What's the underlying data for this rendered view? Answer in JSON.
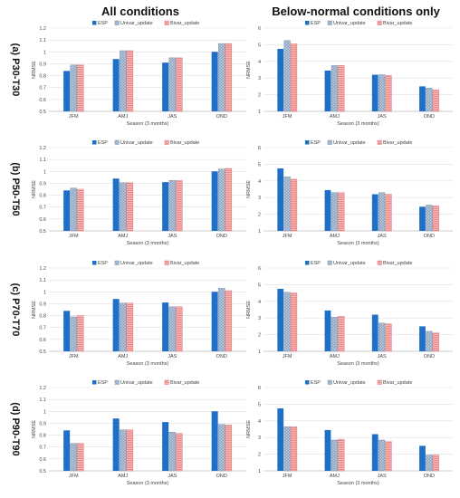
{
  "columns": [
    "All conditions",
    "Below-normal conditions only"
  ],
  "rows": [
    "(a) P30-T30",
    "(b) P50-T50",
    "(c) P70-T70",
    "(d) P90-T90"
  ],
  "colors": {
    "ESP": "#1f6fc6",
    "Univar_update": "#a9bdd6",
    "Bivar_update": "#ef7f7f"
  },
  "chart_data": [
    {
      "type": "bar",
      "row": 0,
      "col": 0,
      "categories": [
        "JFM",
        "AMJ",
        "JAS",
        "OND"
      ],
      "series": [
        {
          "name": "ESP",
          "values": [
            0.84,
            0.94,
            0.91,
            1.0
          ]
        },
        {
          "name": "Univar_update",
          "values": [
            0.89,
            1.01,
            0.95,
            1.07
          ]
        },
        {
          "name": "Bivar_update",
          "values": [
            0.89,
            1.01,
            0.95,
            1.07
          ]
        }
      ],
      "xlabel": "Season (3 months)",
      "ylabel": "NRMSE",
      "ylim": [
        0.5,
        1.2
      ],
      "yticks": [
        0.5,
        0.6,
        0.7,
        0.8,
        0.9,
        1.0,
        1.1,
        1.2
      ],
      "yticklabels": [
        "0.5",
        "0.6",
        "0.7",
        "0.8",
        "0.9",
        "1",
        "1.1",
        "1.2"
      ]
    },
    {
      "type": "bar",
      "row": 0,
      "col": 1,
      "categories": [
        "JFM",
        "AMJ",
        "JAS",
        "OND"
      ],
      "series": [
        {
          "name": "ESP",
          "values": [
            4.75,
            3.45,
            3.2,
            2.5
          ]
        },
        {
          "name": "Univar_update",
          "values": [
            5.25,
            3.75,
            3.2,
            2.4
          ]
        },
        {
          "name": "Bivar_update",
          "values": [
            5.05,
            3.75,
            3.15,
            2.3
          ]
        }
      ],
      "xlabel": "Season (3 months)",
      "ylabel": "NRMSE",
      "ylim": [
        1,
        6
      ],
      "yticks": [
        1,
        2,
        3,
        4,
        5,
        6
      ],
      "yticklabels": [
        "1",
        "2",
        "3",
        "4",
        "5",
        "6"
      ]
    },
    {
      "type": "bar",
      "row": 1,
      "col": 0,
      "categories": [
        "JFM",
        "AMJ",
        "JAS",
        "OND"
      ],
      "series": [
        {
          "name": "ESP",
          "values": [
            0.84,
            0.94,
            0.91,
            1.0
          ]
        },
        {
          "name": "Univar_update",
          "values": [
            0.86,
            0.905,
            0.925,
            1.02
          ]
        },
        {
          "name": "Bivar_update",
          "values": [
            0.85,
            0.905,
            0.925,
            1.025
          ]
        }
      ],
      "xlabel": "Season (3 months)",
      "ylabel": "NRMSE",
      "ylim": [
        0.5,
        1.2
      ],
      "yticks": [
        0.5,
        0.6,
        0.7,
        0.8,
        0.9,
        1.0,
        1.1,
        1.2
      ],
      "yticklabels": [
        "0.5",
        "0.6",
        "0.7",
        "0.8",
        "0.9",
        "1",
        "1.1",
        "1.2"
      ]
    },
    {
      "type": "bar",
      "row": 1,
      "col": 1,
      "categories": [
        "JFM",
        "AMJ",
        "JAS",
        "OND"
      ],
      "series": [
        {
          "name": "ESP",
          "values": [
            4.75,
            3.45,
            3.2,
            2.45
          ]
        },
        {
          "name": "Univar_update",
          "values": [
            4.25,
            3.3,
            3.3,
            2.55
          ]
        },
        {
          "name": "Bivar_update",
          "values": [
            4.1,
            3.3,
            3.2,
            2.5
          ]
        }
      ],
      "xlabel": "Season (3 months)",
      "ylabel": "NRMSE",
      "ylim": [
        1,
        6
      ],
      "yticks": [
        1,
        2,
        3,
        4,
        5,
        6
      ],
      "yticklabels": [
        "1",
        "2",
        "3",
        "4",
        "5",
        "6"
      ]
    },
    {
      "type": "bar",
      "row": 2,
      "col": 0,
      "categories": [
        "JFM",
        "AMJ",
        "JAS",
        "OND"
      ],
      "series": [
        {
          "name": "ESP",
          "values": [
            0.84,
            0.94,
            0.91,
            1.0
          ]
        },
        {
          "name": "Univar_update",
          "values": [
            0.79,
            0.905,
            0.875,
            1.03
          ]
        },
        {
          "name": "Bivar_update",
          "values": [
            0.8,
            0.905,
            0.875,
            1.01
          ]
        }
      ],
      "xlabel": "Season (3 months)",
      "ylabel": "NRMSE",
      "ylim": [
        0.5,
        1.2
      ],
      "yticks": [
        0.5,
        0.6,
        0.7,
        0.8,
        0.9,
        1.0,
        1.1,
        1.2
      ],
      "yticklabels": [
        "0.5",
        "0.6",
        "0.7",
        "0.8",
        "0.9",
        "1",
        "1.1",
        "1.2"
      ]
    },
    {
      "type": "bar",
      "row": 2,
      "col": 1,
      "categories": [
        "JFM",
        "AMJ",
        "JAS",
        "OND"
      ],
      "series": [
        {
          "name": "ESP",
          "values": [
            4.75,
            3.45,
            3.2,
            2.5
          ]
        },
        {
          "name": "Univar_update",
          "values": [
            4.55,
            3.05,
            2.7,
            2.2
          ]
        },
        {
          "name": "Bivar_update",
          "values": [
            4.5,
            3.1,
            2.65,
            2.1
          ]
        }
      ],
      "xlabel": "Season (3 months)",
      "ylabel": "NRMSE",
      "ylim": [
        1,
        6
      ],
      "yticks": [
        1,
        2,
        3,
        4,
        5,
        6
      ],
      "yticklabels": [
        "1",
        "2",
        "3",
        "4",
        "5",
        "6"
      ]
    },
    {
      "type": "bar",
      "row": 3,
      "col": 0,
      "categories": [
        "JFM",
        "AMJ",
        "JAS",
        "OND"
      ],
      "series": [
        {
          "name": "ESP",
          "values": [
            0.84,
            0.94,
            0.91,
            1.0
          ]
        },
        {
          "name": "Univar_update",
          "values": [
            0.73,
            0.845,
            0.825,
            0.89
          ]
        },
        {
          "name": "Bivar_update",
          "values": [
            0.73,
            0.845,
            0.815,
            0.885
          ]
        }
      ],
      "xlabel": "Season (3 months)",
      "ylabel": "NRMSE",
      "ylim": [
        0.5,
        1.2
      ],
      "yticks": [
        0.5,
        0.6,
        0.7,
        0.8,
        0.9,
        1.0,
        1.1,
        1.2
      ],
      "yticklabels": [
        "0.5",
        "0.6",
        "0.7",
        "0.8",
        "0.9",
        "1",
        "1.1",
        "1.2"
      ]
    },
    {
      "type": "bar",
      "row": 3,
      "col": 1,
      "categories": [
        "JFM",
        "AMJ",
        "JAS",
        "OND"
      ],
      "series": [
        {
          "name": "ESP",
          "values": [
            4.75,
            3.45,
            3.2,
            2.5
          ]
        },
        {
          "name": "Univar_update",
          "values": [
            3.65,
            2.85,
            2.85,
            1.95
          ]
        },
        {
          "name": "Bivar_update",
          "values": [
            3.65,
            2.9,
            2.75,
            1.95
          ]
        }
      ],
      "xlabel": "Season (3 months)",
      "ylabel": "NRMSE",
      "ylim": [
        1,
        6
      ],
      "yticks": [
        1,
        2,
        3,
        4,
        5,
        6
      ],
      "yticklabels": [
        "1",
        "2",
        "3",
        "4",
        "5",
        "6"
      ]
    }
  ]
}
